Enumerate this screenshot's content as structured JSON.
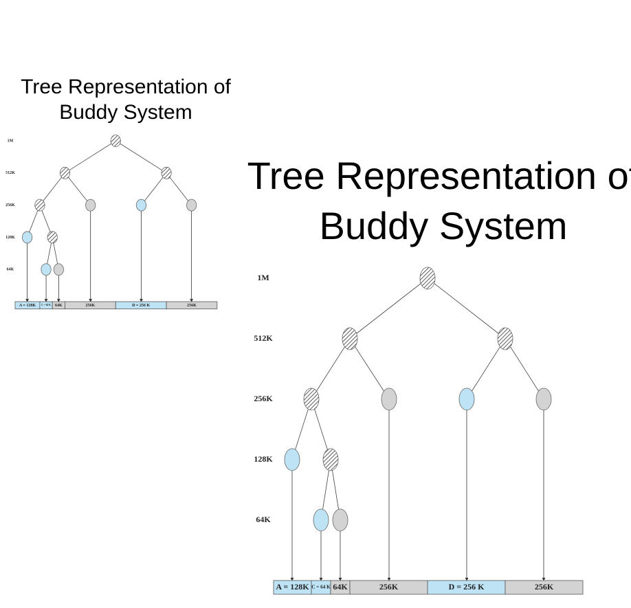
{
  "title": [
    "Tree Representation of",
    "Buddy System"
  ],
  "levels": [
    "1M",
    "512K",
    "256K",
    "128K",
    "64K"
  ],
  "blocks": [
    "A = 128K",
    "C = 64 K",
    "64K",
    "256K",
    "D = 256 K",
    "256K"
  ]
}
